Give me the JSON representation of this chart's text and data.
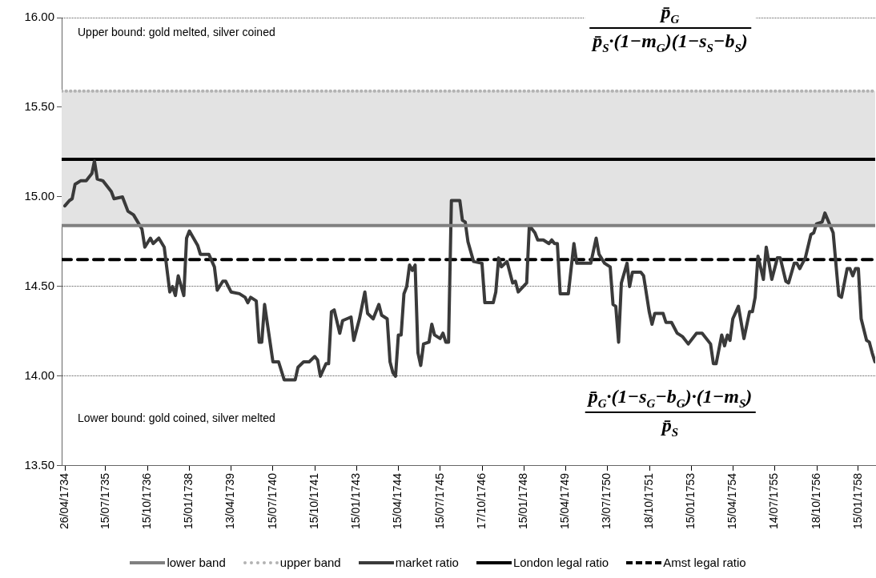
{
  "chart_data": {
    "type": "line",
    "annotations": [
      "Upper bound: gold melted, silver coined",
      "p̄$_{G}$",
      "p̄$_{S}$·(1−m$_{G}$)(1−s$_{S}$−b$_{S}$)",
      "Lower bound: gold coined, silver melted",
      "p̄$_{G}$·(1−s$_{G}$−b$_{G}$)·(1−m$_{S}$)",
      "p̄$_{S}$"
    ],
    "xlim": [
      "1734-03-22",
      "1758-07-18"
    ],
    "xticks": [
      {
        "value": "1734-04-26",
        "label": "26/04/1734"
      },
      {
        "value": "1735-07-15",
        "label": "15/07/1735"
      },
      {
        "value": "1736-10-15",
        "label": "15/10/1736"
      },
      {
        "value": "1738-01-15",
        "label": "15/01/1738"
      },
      {
        "value": "1739-04-13",
        "label": "13/04/1739"
      },
      {
        "value": "1740-07-15",
        "label": "15/07/1740"
      },
      {
        "value": "1741-10-15",
        "label": "15/10/1741"
      },
      {
        "value": "1743-01-15",
        "label": "15/01/1743"
      },
      {
        "value": "1744-04-15",
        "label": "15/04/1744"
      },
      {
        "value": "1745-07-15",
        "label": "15/07/1745"
      },
      {
        "value": "1746-10-17",
        "label": "17/10/1746"
      },
      {
        "value": "1748-01-15",
        "label": "15/01/1748"
      },
      {
        "value": "1749-04-15",
        "label": "15/04/1749"
      },
      {
        "value": "1750-07-13",
        "label": "13/07/1750"
      },
      {
        "value": "1751-10-18",
        "label": "18/10/1751"
      },
      {
        "value": "1753-01-15",
        "label": "15/01/1753"
      },
      {
        "value": "1754-04-15",
        "label": "15/04/1754"
      },
      {
        "value": "1755-07-14",
        "label": "14/07/1755"
      },
      {
        "value": "1756-10-18",
        "label": "18/10/1756"
      },
      {
        "value": "1758-01-15",
        "label": "15/01/1758"
      }
    ],
    "ylim": [
      13.5,
      16
    ],
    "yticks": [
      {
        "value": 13.5,
        "label": "13.50"
      },
      {
        "value": 14,
        "label": "14.00"
      },
      {
        "value": 14.5,
        "label": "14.50"
      },
      {
        "value": 15,
        "label": "15.00"
      },
      {
        "value": 15.5,
        "label": "15.50"
      },
      {
        "value": 16,
        "label": "16.00"
      }
    ],
    "grid": "y",
    "legend": "bottom",
    "marker": "none",
    "bands": [
      {
        "axis": "y",
        "from": 14.84,
        "to": 15.59,
        "color": "#e3e3e3"
      }
    ],
    "series": [
      {
        "name": "lower band",
        "color": "#808080",
        "x": [
          "1734-03-22",
          "1758-07-18"
        ],
        "values": [
          14.84,
          14.84
        ]
      },
      {
        "name": "upper band",
        "color": "#b3b3b3",
        "line_style": "dotted",
        "x": [
          "1734-03-22",
          "1758-07-18"
        ],
        "values": [
          15.59,
          15.59
        ]
      },
      {
        "name": "market ratio",
        "color": "#3a3a3a",
        "x": [
          "1734-04-26",
          "1734-06-15",
          "1734-07-15",
          "1734-08-15",
          "1734-10-15",
          "1734-12-15",
          "1735-02-15",
          "1735-03-15",
          "1735-04-15",
          "1735-06-15",
          "1735-09-15",
          "1735-10-15",
          "1736-01-15",
          "1736-03-15",
          "1736-05-15",
          "1736-08-15",
          "1736-09-15",
          "1736-11-15",
          "1736-12-15",
          "1737-02-15",
          "1737-04-15",
          "1737-06-15",
          "1737-07-15",
          "1737-08-15",
          "1737-09-15",
          "1737-11-15",
          "1737-12-15",
          "1738-01-15",
          "1738-04-15",
          "1738-05-15",
          "1738-08-15",
          "1738-10-15",
          "1738-11-15",
          "1739-01-15",
          "1739-02-15",
          "1739-04-15",
          "1739-07-15",
          "1739-09-15",
          "1739-10-15",
          "1739-11-15",
          "1740-01-15",
          "1740-02-15",
          "1740-03-15",
          "1740-04-15",
          "1740-07-15",
          "1740-09-15",
          "1740-11-15",
          "1741-03-15",
          "1741-04-15",
          "1741-06-15",
          "1741-08-15",
          "1741-10-15",
          "1741-11-15",
          "1741-12-15",
          "1742-02-15",
          "1742-03-15",
          "1742-04-15",
          "1742-05-15",
          "1742-07-15",
          "1742-08-15",
          "1742-11-15",
          "1742-12-15",
          "1743-02-15",
          "1743-04-15",
          "1743-05-15",
          "1743-07-15",
          "1743-09-15",
          "1743-10-15",
          "1743-12-15",
          "1744-01-15",
          "1744-02-15",
          "1744-03-15",
          "1744-04-15",
          "1744-05-15",
          "1744-06-15",
          "1744-07-15",
          "1744-08-15",
          "1744-09-15",
          "1744-10-15",
          "1744-11-15",
          "1744-12-15",
          "1745-01-15",
          "1745-03-15",
          "1745-04-15",
          "1745-05-15",
          "1745-07-15",
          "1745-08-15",
          "1745-09-15",
          "1745-10-15",
          "1745-11-15",
          "1746-02-15",
          "1746-03-15",
          "1746-04-15",
          "1746-05-15",
          "1746-07-15",
          "1746-10-15",
          "1746-11-15",
          "1747-02-15",
          "1747-03-15",
          "1747-04-15",
          "1747-05-15",
          "1747-07-15",
          "1747-09-15",
          "1747-10-15",
          "1747-11-15",
          "1748-02-15",
          "1748-03-15",
          "1748-05-15",
          "1748-06-15",
          "1748-08-15",
          "1748-10-15",
          "1748-11-15",
          "1748-12-15",
          "1749-01-15",
          "1749-02-15",
          "1749-05-15",
          "1749-07-15",
          "1749-08-15",
          "1750-01-15",
          "1750-03-15",
          "1750-04-15",
          "1750-06-15",
          "1750-08-15",
          "1750-09-15",
          "1750-10-15",
          "1750-11-15",
          "1750-12-15",
          "1751-02-15",
          "1751-03-15",
          "1751-04-15",
          "1751-07-15",
          "1751-08-15",
          "1751-10-15",
          "1751-11-15",
          "1751-12-15",
          "1752-03-15",
          "1752-04-15",
          "1752-06-15",
          "1752-08-15",
          "1752-10-15",
          "1752-12-15",
          "1753-03-15",
          "1753-05-15",
          "1753-08-15",
          "1753-09-15",
          "1753-10-15",
          "1753-12-15",
          "1754-01-15",
          "1754-02-15",
          "1754-03-15",
          "1754-04-15",
          "1754-06-15",
          "1754-08-15",
          "1754-10-15",
          "1754-11-15",
          "1754-12-15",
          "1755-01-15",
          "1755-03-15",
          "1755-04-15",
          "1755-06-15",
          "1755-08-15",
          "1755-09-15",
          "1755-11-15",
          "1755-12-15",
          "1756-02-15",
          "1756-03-15",
          "1756-04-15",
          "1756-06-15",
          "1756-08-15",
          "1756-09-15",
          "1756-10-15",
          "1756-12-15",
          "1757-01-15",
          "1757-04-15",
          "1757-06-15",
          "1757-07-15",
          "1757-09-15",
          "1757-10-15",
          "1757-11-15",
          "1757-12-15",
          "1758-01-15",
          "1758-02-15",
          "1758-04-15",
          "1758-05-15",
          "1758-06-15",
          "1758-07-15"
        ],
        "values": [
          14.95,
          14.98,
          14.99,
          15.07,
          15.09,
          15.09,
          15.13,
          15.2,
          15.1,
          15.09,
          15.03,
          14.99,
          15.0,
          14.92,
          14.9,
          14.82,
          14.72,
          14.77,
          14.74,
          14.77,
          14.72,
          14.47,
          14.5,
          14.45,
          14.56,
          14.45,
          14.77,
          14.81,
          14.73,
          14.68,
          14.68,
          14.61,
          14.48,
          14.53,
          14.53,
          14.47,
          14.46,
          14.44,
          14.41,
          14.44,
          14.42,
          14.19,
          14.19,
          14.4,
          14.08,
          14.08,
          13.98,
          13.98,
          14.05,
          14.08,
          14.08,
          14.11,
          14.09,
          14.0,
          14.07,
          14.07,
          14.36,
          14.37,
          14.24,
          14.31,
          14.33,
          14.2,
          14.32,
          14.47,
          14.35,
          14.32,
          14.4,
          14.34,
          14.32,
          14.08,
          14.02,
          14.0,
          14.23,
          14.23,
          14.46,
          14.5,
          14.62,
          14.59,
          14.62,
          14.13,
          14.06,
          14.18,
          14.19,
          14.29,
          14.23,
          14.21,
          14.24,
          14.19,
          14.19,
          14.98,
          14.98,
          14.87,
          14.86,
          14.75,
          14.64,
          14.63,
          14.41,
          14.41,
          14.47,
          14.66,
          14.61,
          14.64,
          14.52,
          14.53,
          14.47,
          14.52,
          14.84,
          14.8,
          14.76,
          14.76,
          14.74,
          14.76,
          14.74,
          14.74,
          14.46,
          14.46,
          14.74,
          14.63,
          14.63,
          14.77,
          14.68,
          14.63,
          14.61,
          14.4,
          14.39,
          14.19,
          14.52,
          14.63,
          14.5,
          14.58,
          14.58,
          14.56,
          14.36,
          14.29,
          14.35,
          14.35,
          14.3,
          14.3,
          14.24,
          14.22,
          14.18,
          14.24,
          14.24,
          14.18,
          14.07,
          14.07,
          14.23,
          14.17,
          14.23,
          14.2,
          14.32,
          14.39,
          14.21,
          14.36,
          14.36,
          14.44,
          14.67,
          14.54,
          14.72,
          14.54,
          14.66,
          14.66,
          14.53,
          14.52,
          14.63,
          14.63,
          14.6,
          14.66,
          14.79,
          14.8,
          14.85,
          14.86,
          14.91,
          14.8,
          14.45,
          14.44,
          14.6,
          14.6,
          14.56,
          14.6,
          14.6,
          14.32,
          14.2,
          14.19,
          14.13,
          14.08
        ]
      },
      {
        "name": "London legal ratio",
        "color": "#000000",
        "x": [
          "1734-03-22",
          "1758-07-18"
        ],
        "values": [
          15.21,
          15.21
        ]
      },
      {
        "name": "Amst legal ratio",
        "color": "#000000",
        "line_style": "dashed",
        "x": [
          "1734-03-22",
          "1758-07-18"
        ],
        "values": [
          14.65,
          14.65
        ]
      }
    ]
  }
}
